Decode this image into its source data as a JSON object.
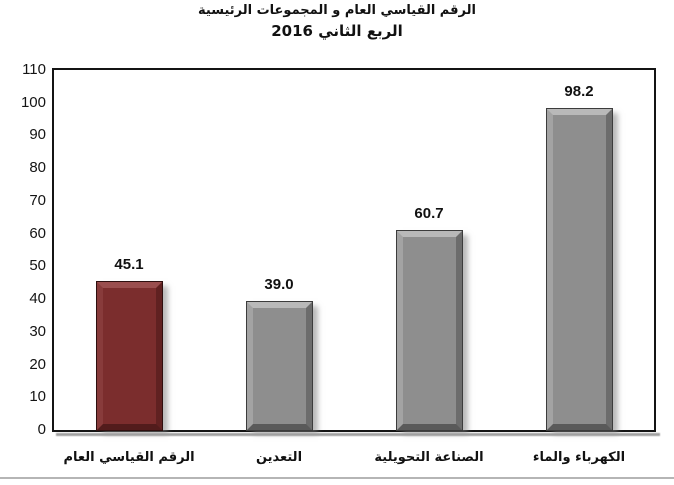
{
  "chart_data": {
    "type": "bar",
    "title_line1": "الرقم القياسي العام  و المجموعات الرئيسية",
    "title_line2": "الربع  الثاني 2016",
    "categories": [
      "الرقم القياسي العام",
      "التعدين",
      "الصناعة التحويلية",
      "الكهرباء والماء"
    ],
    "values": [
      45.1,
      39,
      60.7,
      98.2
    ],
    "value_labels": [
      "45.1",
      "39.0",
      "60.7",
      "98.2"
    ],
    "bar_styles": [
      "accent_bar",
      "gray_bar",
      "gray_bar",
      "gray_bar"
    ],
    "ylim": [
      0,
      110
    ],
    "yticks": [
      110,
      100,
      90,
      80,
      70,
      60,
      50,
      40,
      30,
      20,
      10,
      0
    ],
    "xlabel": "",
    "ylabel": "",
    "grid": false,
    "legend": "none"
  },
  "colors": {
    "accent_bar": {
      "fill": "#7b2d2d",
      "bevel_light": "#9a4e4e",
      "bevel_mid_light": "#883b3b",
      "bevel_mid_dark": "#602121",
      "bevel_dark": "#521c1c",
      "outline": "#2e0f0f"
    },
    "gray_bar": {
      "fill": "#8e8e8e",
      "bevel_light": "#b9b9b9",
      "bevel_mid_light": "#a3a3a3",
      "bevel_mid_dark": "#6c6c6c",
      "bevel_dark": "#5a5a5a",
      "outline": "#3c3c3c"
    },
    "plot_border": "#141414",
    "text": "#111111",
    "shadow": "rgba(128,128,128,0.55)"
  }
}
